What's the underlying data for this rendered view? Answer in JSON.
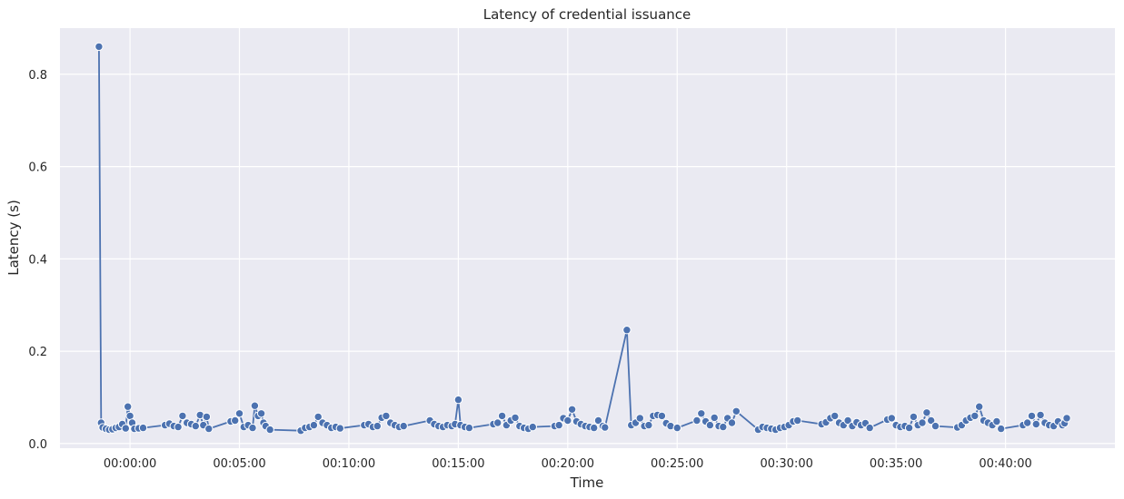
{
  "chart_data": {
    "type": "line",
    "title": "Latency of credential issuance",
    "xlabel": "Time",
    "ylabel": "Latency (s)",
    "x_unit": "minutes",
    "xlim": [
      -3.2,
      45.0
    ],
    "ylim": [
      -0.01,
      0.9
    ],
    "x_ticks": [
      0,
      5,
      10,
      15,
      20,
      25,
      30,
      35,
      40
    ],
    "x_tick_labels": [
      "00:00:00",
      "00:05:00",
      "00:10:00",
      "00:15:00",
      "00:20:00",
      "00:25:00",
      "00:30:00",
      "00:35:00",
      "00:40:00"
    ],
    "y_ticks": [
      0.0,
      0.2,
      0.4,
      0.6,
      0.8
    ],
    "y_tick_labels": [
      "0.0",
      "0.2",
      "0.4",
      "0.6",
      "0.8"
    ],
    "grid": true,
    "background_color": "#eaeaf2",
    "grid_color": "#ffffff",
    "series_color": "#4c72b0",
    "series": [
      {
        "x": [
          -1.42,
          -1.32,
          -1.25,
          -1.1,
          -0.95,
          -0.8,
          -0.65,
          -0.5,
          -0.35,
          -0.2,
          -0.1,
          0.0,
          0.1,
          0.2,
          0.4,
          0.6,
          1.6,
          1.8,
          2.0,
          2.2,
          2.4,
          2.6,
          2.8,
          3.0,
          3.2,
          3.35,
          3.5,
          3.6,
          4.6,
          4.8,
          5.0,
          5.2,
          5.4,
          5.6,
          5.7,
          5.85,
          6.0,
          6.1,
          6.2,
          6.4,
          7.8,
          8.0,
          8.2,
          8.4,
          8.6,
          8.8,
          9.0,
          9.2,
          9.4,
          9.6,
          10.7,
          10.9,
          11.1,
          11.3,
          11.5,
          11.7,
          11.9,
          12.1,
          12.3,
          12.5,
          13.7,
          13.9,
          14.1,
          14.3,
          14.5,
          14.7,
          14.85,
          15.0,
          15.1,
          15.3,
          15.5,
          16.6,
          16.8,
          17.0,
          17.2,
          17.4,
          17.6,
          17.8,
          18.0,
          18.2,
          18.4,
          19.4,
          19.6,
          19.8,
          20.0,
          20.2,
          20.4,
          20.6,
          20.8,
          21.0,
          21.2,
          21.4,
          21.6,
          21.7,
          22.7,
          22.9,
          23.1,
          23.3,
          23.5,
          23.7,
          23.9,
          24.1,
          24.3,
          24.5,
          24.7,
          25.0,
          25.9,
          26.1,
          26.3,
          26.5,
          26.7,
          26.9,
          27.1,
          27.3,
          27.5,
          27.7,
          28.7,
          28.9,
          29.1,
          29.3,
          29.5,
          29.7,
          29.9,
          30.1,
          30.3,
          30.5,
          31.6,
          31.8,
          32.0,
          32.2,
          32.4,
          32.6,
          32.8,
          33.0,
          33.2,
          33.4,
          33.6,
          33.8,
          34.6,
          34.8,
          35.0,
          35.2,
          35.4,
          35.6,
          35.8,
          36.0,
          36.2,
          36.4,
          36.6,
          36.8,
          37.8,
          38.0,
          38.2,
          38.4,
          38.6,
          38.8,
          39.0,
          39.2,
          39.4,
          39.6,
          39.8,
          40.8,
          41.0,
          41.2,
          41.4,
          41.6,
          41.8,
          42.0,
          42.2,
          42.4,
          42.6,
          42.7,
          42.8
        ],
        "y": [
          0.86,
          0.045,
          0.035,
          0.032,
          0.03,
          0.031,
          0.034,
          0.036,
          0.042,
          0.033,
          0.08,
          0.06,
          0.045,
          0.032,
          0.033,
          0.034,
          0.04,
          0.043,
          0.038,
          0.036,
          0.06,
          0.045,
          0.042,
          0.038,
          0.062,
          0.04,
          0.058,
          0.032,
          0.048,
          0.05,
          0.065,
          0.036,
          0.04,
          0.034,
          0.082,
          0.06,
          0.065,
          0.045,
          0.038,
          0.03,
          0.028,
          0.034,
          0.036,
          0.04,
          0.058,
          0.045,
          0.04,
          0.034,
          0.036,
          0.033,
          0.04,
          0.042,
          0.036,
          0.038,
          0.056,
          0.06,
          0.045,
          0.04,
          0.036,
          0.038,
          0.05,
          0.042,
          0.038,
          0.036,
          0.04,
          0.038,
          0.042,
          0.095,
          0.04,
          0.036,
          0.034,
          0.042,
          0.045,
          0.06,
          0.04,
          0.05,
          0.056,
          0.038,
          0.034,
          0.032,
          0.036,
          0.038,
          0.04,
          0.055,
          0.05,
          0.074,
          0.048,
          0.042,
          0.038,
          0.036,
          0.034,
          0.05,
          0.038,
          0.035,
          0.246,
          0.04,
          0.045,
          0.055,
          0.038,
          0.04,
          0.06,
          0.062,
          0.06,
          0.044,
          0.038,
          0.034,
          0.05,
          0.065,
          0.048,
          0.04,
          0.056,
          0.038,
          0.036,
          0.055,
          0.045,
          0.07,
          0.03,
          0.036,
          0.034,
          0.032,
          0.03,
          0.034,
          0.036,
          0.04,
          0.048,
          0.05,
          0.042,
          0.046,
          0.055,
          0.06,
          0.045,
          0.04,
          0.05,
          0.038,
          0.046,
          0.04,
          0.044,
          0.034,
          0.052,
          0.055,
          0.04,
          0.036,
          0.038,
          0.034,
          0.058,
          0.04,
          0.045,
          0.067,
          0.05,
          0.038,
          0.035,
          0.04,
          0.05,
          0.056,
          0.06,
          0.08,
          0.05,
          0.045,
          0.04,
          0.048,
          0.032,
          0.04,
          0.045,
          0.06,
          0.042,
          0.062,
          0.045,
          0.04,
          0.038,
          0.048,
          0.04,
          0.044,
          0.055
        ]
      }
    ]
  }
}
